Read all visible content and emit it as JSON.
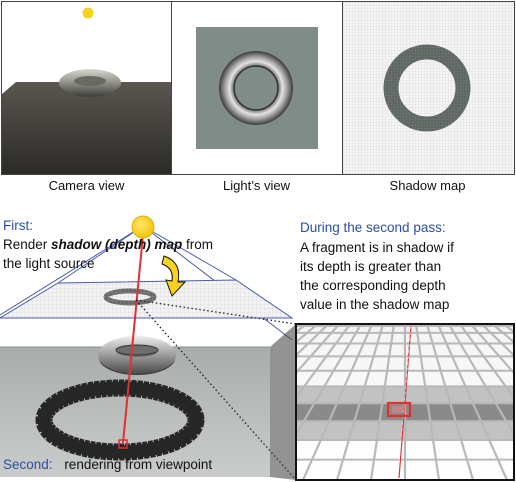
{
  "captions": {
    "camera_view": "Camera view",
    "lights_view": "Light’s view",
    "shadow_map": "Shadow map"
  },
  "first": {
    "heading": "First:",
    "line1_prefix": "Render ",
    "line1_emph": "shadow (depth) map",
    "line1_suffix": " from",
    "line2": "the light source"
  },
  "second_pass": {
    "heading": "During the second pass:",
    "lines": [
      "A fragment is in shadow if",
      "its depth is greater than",
      "the corresponding depth",
      "value in the shadow  map"
    ]
  },
  "second": {
    "label": "Second:",
    "text": "rendering from viewpoint"
  },
  "colors": {
    "blue_text": "#2b4fa0",
    "light_yellow": "#f7d21e",
    "ray_red": "#e03030",
    "frustum_blue": "#4a5bb0"
  }
}
